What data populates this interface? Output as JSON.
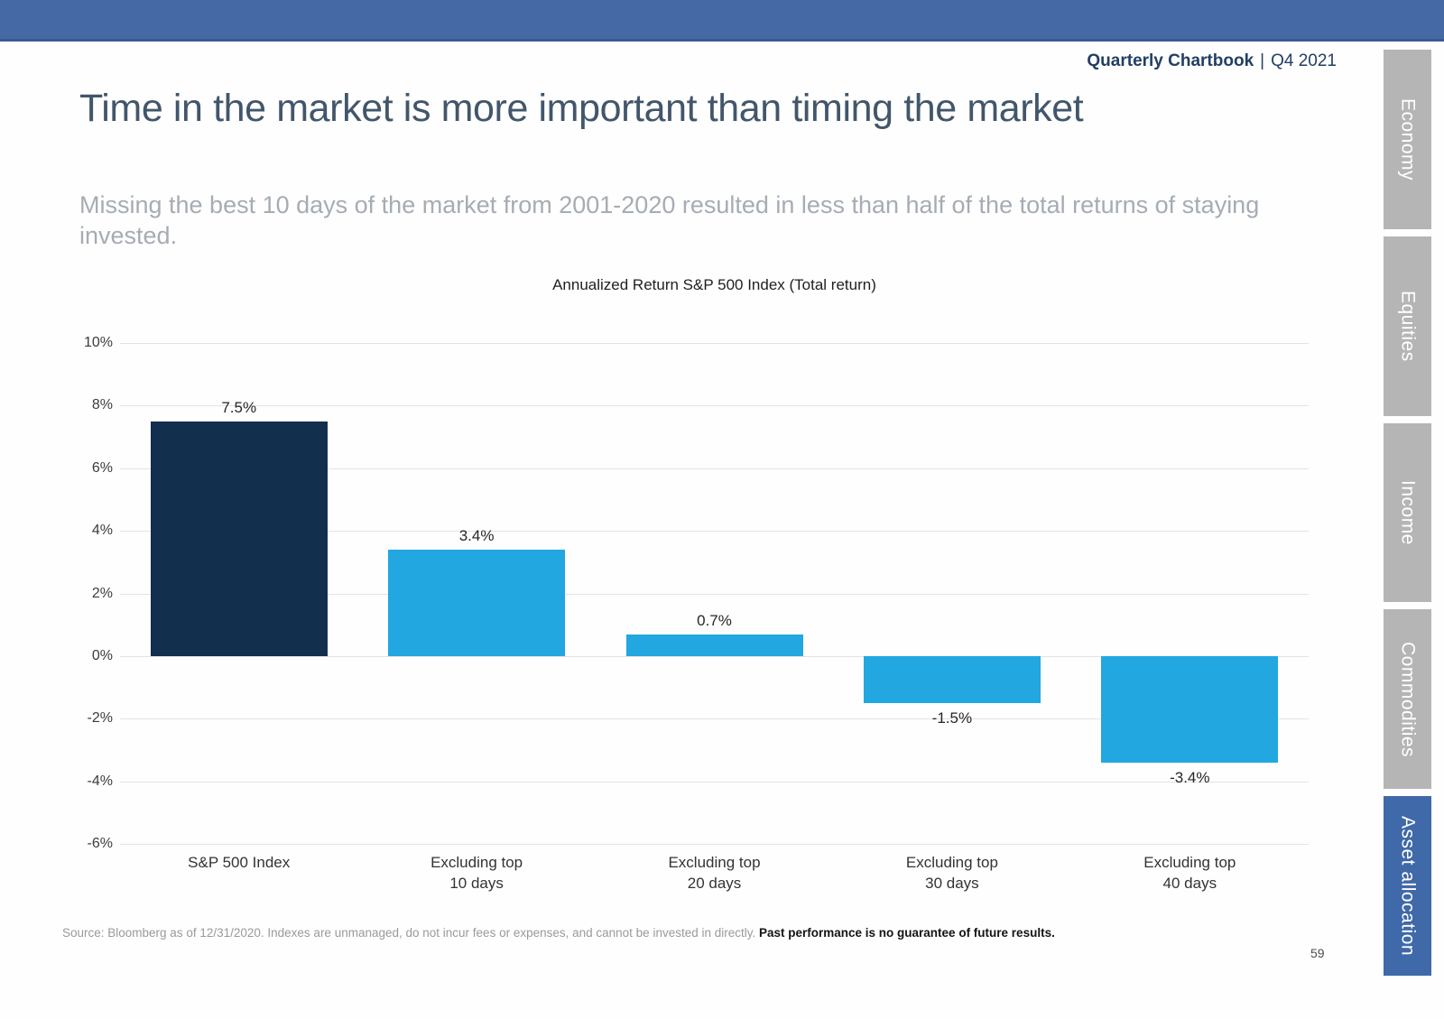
{
  "header": {
    "brand": "Quarterly Chartbook",
    "divider": "|",
    "edition": "Q4 2021"
  },
  "title": "Time in the market is more important than timing the market",
  "subtitle": "Missing the best 10 days of the market from 2001-2020 resulted in less than half of the total returns of staying invested.",
  "sidebar": {
    "tabs": [
      {
        "label": "Economy",
        "active": false
      },
      {
        "label": "Equities",
        "active": false
      },
      {
        "label": "Income",
        "active": false
      },
      {
        "label": "Commodities",
        "active": false
      },
      {
        "label": "Asset allocation",
        "active": true
      }
    ]
  },
  "chart_data": {
    "type": "bar",
    "title": "Annualized Return S&P 500 Index (Total return)",
    "categories": [
      "S&P 500 Index",
      "Excluding top\n10 days",
      "Excluding top\n20 days",
      "Excluding top\n30 days",
      "Excluding top\n40 days"
    ],
    "values": [
      7.5,
      3.4,
      0.7,
      -1.5,
      -3.4
    ],
    "labels": [
      "7.5%",
      "3.4%",
      "0.7%",
      "-1.5%",
      "-3.4%"
    ],
    "ylim": [
      -6,
      10
    ],
    "yticks": [
      "10%",
      "8%",
      "6%",
      "4%",
      "2%",
      "0%",
      "-2%",
      "-4%",
      "-6%"
    ],
    "grid": true,
    "legend": "none",
    "xlabel": "",
    "ylabel": "",
    "bar_colors": [
      "#132f4e",
      "#22a7e0",
      "#22a7e0",
      "#22a7e0",
      "#22a7e0"
    ]
  },
  "footer": {
    "source_regular": "Source: Bloomberg as of 12/31/2020. Indexes are unmanaged, do not incur fees or expenses, and cannot be invested in directly. ",
    "source_bold": "Past performance is no guarantee of future results.",
    "page_number": "59"
  },
  "colors": {
    "accent_bar": "#4569a4",
    "active_tab": "#3f69a8",
    "inactive_tab": "#b5b5b5",
    "navy_bar": "#132f4e",
    "light_blue_bar": "#22a7e0",
    "title_text": "#42566b",
    "subtitle_text": "#a6acb4"
  }
}
